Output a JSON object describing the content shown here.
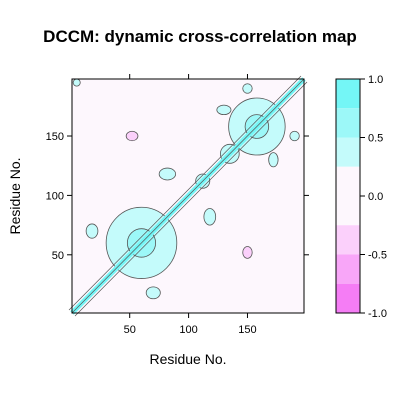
{
  "chart_data": {
    "type": "heatmap",
    "title": "DCCM: dynamic cross-correlation map",
    "xlabel": "Residue No.",
    "ylabel": "Residue No.",
    "xlim": [
      1,
      198
    ],
    "ylim": [
      1,
      198
    ],
    "x_ticks": [
      {
        "value": 50,
        "label": "50"
      },
      {
        "value": 100,
        "label": "100"
      },
      {
        "value": 150,
        "label": "150"
      }
    ],
    "y_ticks": [
      {
        "value": 50,
        "label": "50"
      },
      {
        "value": 100,
        "label": "100"
      },
      {
        "value": 150,
        "label": "150"
      }
    ],
    "colorkey": {
      "range": [
        -1.0,
        1.0
      ],
      "ticks": [
        {
          "value": 1.0,
          "label": "1.0"
        },
        {
          "value": 0.5,
          "label": "0.5"
        },
        {
          "value": 0.0,
          "label": "0.0"
        },
        {
          "value": -0.5,
          "label": "-0.5"
        },
        {
          "value": -1.0,
          "label": "-1.0"
        }
      ],
      "bands": [
        {
          "from": 0.75,
          "to": 1.0,
          "color": "#74f6f6"
        },
        {
          "from": 0.5,
          "to": 0.75,
          "color": "#9cf8f8"
        },
        {
          "from": 0.25,
          "to": 0.5,
          "color": "#c4fbfb"
        },
        {
          "from": 0.0,
          "to": 0.25,
          "color": "#fdf7fd"
        },
        {
          "from": -0.25,
          "to": 0.0,
          "color": "#fdf7fd"
        },
        {
          "from": -0.5,
          "to": -0.25,
          "color": "#fbd0fb"
        },
        {
          "from": -0.75,
          "to": -0.5,
          "color": "#f8a6f8"
        },
        {
          "from": -1.0,
          "to": -0.75,
          "color": "#f57df5"
        }
      ]
    },
    "features": [
      {
        "kind": "diagonal",
        "value": 1.0,
        "color": "#74f6f6"
      },
      {
        "kind": "positive-region",
        "x": 60,
        "y": 60,
        "rx": 30,
        "ry": 30,
        "value": 0.35,
        "color": "#c4fbfb"
      },
      {
        "kind": "positive-region",
        "x": 60,
        "y": 60,
        "rx": 12,
        "ry": 12,
        "value": 0.6,
        "color": "#9cf8f8"
      },
      {
        "kind": "positive-region",
        "x": 158,
        "y": 158,
        "rx": 24,
        "ry": 24,
        "value": 0.35,
        "color": "#c4fbfb"
      },
      {
        "kind": "positive-region",
        "x": 158,
        "y": 158,
        "rx": 10,
        "ry": 10,
        "value": 0.6,
        "color": "#9cf8f8"
      },
      {
        "kind": "positive-region",
        "x": 135,
        "y": 135,
        "rx": 8,
        "ry": 8,
        "value": 0.3,
        "color": "#c4fbfb"
      },
      {
        "kind": "positive-region",
        "x": 112,
        "y": 112,
        "rx": 6,
        "ry": 6,
        "value": 0.3,
        "color": "#c4fbfb"
      },
      {
        "kind": "positive-region",
        "x": 82,
        "y": 118,
        "rx": 7,
        "ry": 5,
        "value": 0.3,
        "color": "#c4fbfb"
      },
      {
        "kind": "positive-region",
        "x": 118,
        "y": 82,
        "rx": 5,
        "ry": 7,
        "value": 0.3,
        "color": "#c4fbfb"
      },
      {
        "kind": "positive-region",
        "x": 18,
        "y": 70,
        "rx": 5,
        "ry": 6,
        "value": 0.3,
        "color": "#c4fbfb"
      },
      {
        "kind": "positive-region",
        "x": 70,
        "y": 18,
        "rx": 6,
        "ry": 5,
        "value": 0.3,
        "color": "#c4fbfb"
      },
      {
        "kind": "positive-region",
        "x": 130,
        "y": 172,
        "rx": 6,
        "ry": 4,
        "value": 0.3,
        "color": "#c4fbfb"
      },
      {
        "kind": "positive-region",
        "x": 172,
        "y": 130,
        "rx": 4,
        "ry": 6,
        "value": 0.3,
        "color": "#c4fbfb"
      },
      {
        "kind": "positive-region",
        "x": 190,
        "y": 150,
        "rx": 4,
        "ry": 4,
        "value": 0.3,
        "color": "#c4fbfb"
      },
      {
        "kind": "positive-region",
        "x": 150,
        "y": 190,
        "rx": 4,
        "ry": 4,
        "value": 0.3,
        "color": "#c4fbfb"
      },
      {
        "kind": "positive-region",
        "x": 5,
        "y": 195,
        "rx": 3,
        "ry": 3,
        "value": 0.3,
        "color": "#c4fbfb"
      },
      {
        "kind": "negative-region",
        "x": 52,
        "y": 150,
        "rx": 5,
        "ry": 4,
        "value": -0.4,
        "color": "#fbd0fb"
      },
      {
        "kind": "negative-region",
        "x": 150,
        "y": 52,
        "rx": 4,
        "ry": 5,
        "value": -0.4,
        "color": "#fbd0fb"
      }
    ]
  }
}
